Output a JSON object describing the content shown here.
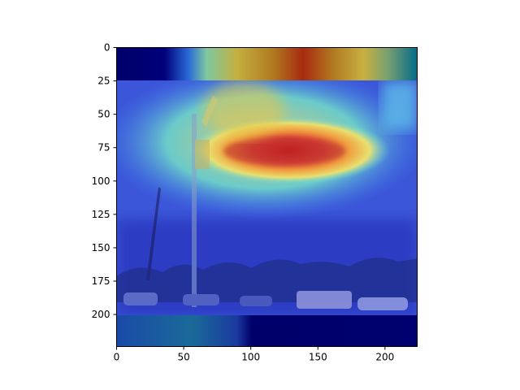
{
  "chart_data": {
    "type": "heatmap",
    "title": "",
    "xlabel": "",
    "ylabel": "",
    "xlim": [
      0,
      224
    ],
    "ylim": [
      224,
      0
    ],
    "x_ticks": [
      "0",
      "50",
      "100",
      "150",
      "200"
    ],
    "y_ticks": [
      "0",
      "25",
      "50",
      "75",
      "100",
      "125",
      "150",
      "175",
      "200"
    ],
    "colormap": "jet",
    "overlay": "heatmap over photograph of a parking lot with light pole and cars",
    "hotspot": {
      "x": [
        70,
        205
      ],
      "y": [
        60,
        95
      ],
      "peak": [
        140,
        80
      ]
    },
    "grid": false,
    "legend": "none"
  }
}
